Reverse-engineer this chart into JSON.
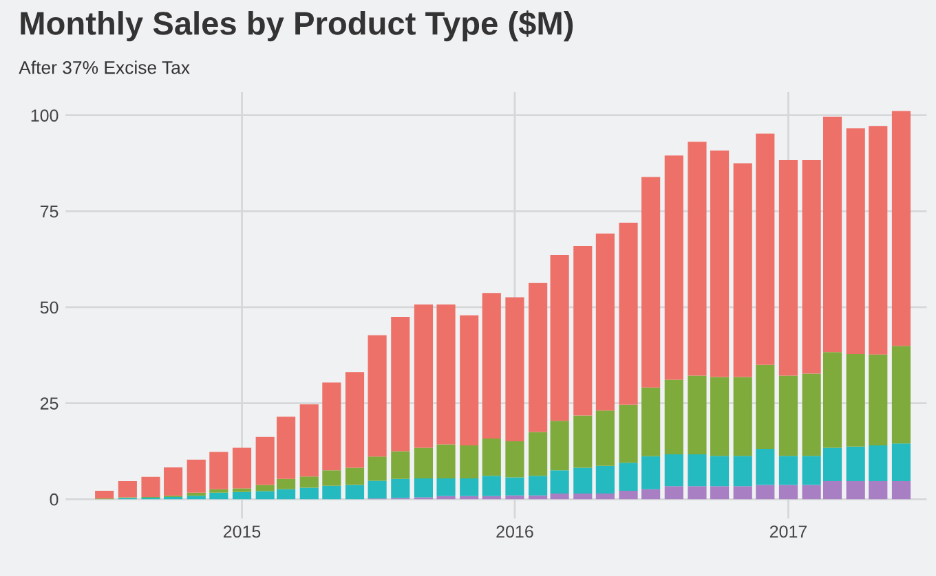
{
  "chart_data": {
    "type": "bar",
    "title": "Monthly Sales by Product Type ($M)",
    "subtitle": "After 37% Excise Tax",
    "stacked": true,
    "grid": true,
    "legend": false,
    "x": [
      "2014-07",
      "2014-08",
      "2014-09",
      "2014-10",
      "2014-11",
      "2014-12",
      "2015-01",
      "2015-02",
      "2015-03",
      "2015-04",
      "2015-05",
      "2015-06",
      "2015-07",
      "2015-08",
      "2015-09",
      "2015-10",
      "2015-11",
      "2015-12",
      "2016-01",
      "2016-02",
      "2016-03",
      "2016-04",
      "2016-05",
      "2016-06",
      "2016-07",
      "2016-08",
      "2016-09",
      "2016-10",
      "2016-11",
      "2016-12",
      "2017-01",
      "2017-02",
      "2017-03",
      "2017-04",
      "2017-05",
      "2017-06"
    ],
    "series": [
      {
        "color": "#a77fc2",
        "values": [
          0,
          0,
          0,
          0,
          0,
          0,
          0,
          0,
          0,
          0,
          0,
          0,
          0.2,
          0.3,
          0.5,
          0.8,
          0.8,
          0.8,
          1.0,
          1.0,
          1.5,
          1.5,
          1.5,
          2.2,
          2.6,
          3.4,
          3.4,
          3.4,
          3.4,
          3.7,
          3.7,
          3.7,
          4.7,
          4.7,
          4.7,
          4.7
        ]
      },
      {
        "color": "#25b9c0",
        "values": [
          0,
          0.3,
          0.4,
          0.6,
          0.9,
          1.7,
          1.9,
          2.1,
          2.6,
          3.0,
          3.5,
          3.7,
          4.6,
          5.0,
          4.9,
          4.6,
          4.6,
          5.3,
          4.7,
          5.1,
          6.0,
          6.7,
          7.2,
          7.3,
          8.6,
          8.3,
          8.3,
          7.9,
          7.9,
          9.4,
          7.6,
          7.6,
          8.7,
          9.0,
          9.3,
          9.8
        ]
      },
      {
        "color": "#7fab3c",
        "values": [
          0.2,
          0.2,
          0.2,
          0.3,
          0.8,
          0.9,
          0.9,
          1.6,
          2.7,
          2.9,
          4.0,
          4.5,
          6.3,
          7.2,
          8.0,
          8.9,
          8.6,
          9.7,
          9.4,
          11.4,
          12.9,
          13.6,
          14.4,
          15.1,
          17.9,
          19.4,
          20.5,
          20.5,
          20.5,
          21.9,
          20.9,
          21.4,
          24.9,
          24.1,
          23.7,
          25.4
        ]
      },
      {
        "color": "#ee7169",
        "values": [
          2.0,
          4.2,
          5.2,
          7.4,
          8.6,
          9.7,
          10.6,
          12.5,
          16.2,
          18.8,
          22.9,
          24.9,
          31.6,
          35.0,
          37.3,
          36.4,
          33.9,
          37.9,
          37.5,
          38.8,
          43.2,
          44.1,
          46.1,
          47.4,
          54.8,
          58.4,
          60.9,
          59.0,
          55.7,
          60.2,
          56.1,
          55.6,
          61.3,
          58.8,
          59.5,
          61.2
        ]
      }
    ],
    "xlim": [
      "2014-05-10",
      "2017-07-05"
    ],
    "xticks": [
      {
        "value": "2015-01-01",
        "label": "2015"
      },
      {
        "value": "2016-01-01",
        "label": "2016"
      },
      {
        "value": "2017-01-01",
        "label": "2017"
      }
    ],
    "ylim": [
      -5,
      106
    ],
    "yticks": [
      0,
      25,
      50,
      75,
      100
    ]
  }
}
